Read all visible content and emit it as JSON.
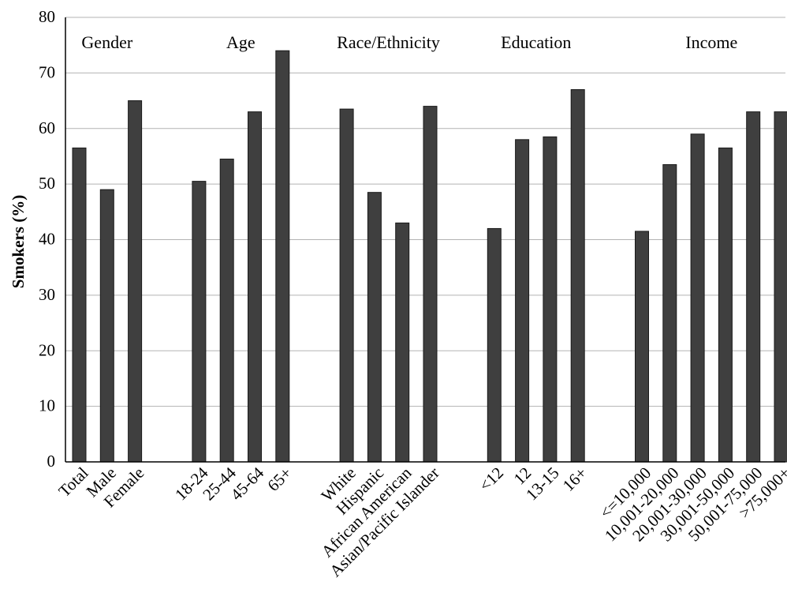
{
  "chart_data": {
    "type": "bar",
    "title": "",
    "xlabel": "",
    "ylabel": "Smokers (%)",
    "ylim": [
      0,
      80
    ],
    "yticks": [
      0,
      10,
      20,
      30,
      40,
      50,
      60,
      70,
      80
    ],
    "grid": true,
    "legend": "none",
    "bar_color": "#3f3f3f",
    "groups": [
      {
        "label": "Gender",
        "categories": [
          "Total",
          "Male",
          "Female"
        ],
        "values": [
          56.5,
          49,
          65
        ]
      },
      {
        "label": "Age",
        "categories": [
          "18-24",
          "25-44",
          "45-64",
          "65+"
        ],
        "values": [
          50.5,
          54.5,
          63,
          74
        ]
      },
      {
        "label": "Race/Ethnicity",
        "categories": [
          "White",
          "Hispanic",
          "African American",
          "Asian/Pacific Islander"
        ],
        "values": [
          63.5,
          48.5,
          43,
          64
        ]
      },
      {
        "label": "Education",
        "categories": [
          "<12",
          "12",
          "13-15",
          "16+"
        ],
        "values": [
          42,
          58,
          58.5,
          67
        ]
      },
      {
        "label": "Income",
        "categories": [
          "<=10,000",
          "10,001-20,000",
          "20,001-30,000",
          "30,001-50,000",
          "50,001-75,000",
          ">75,000+"
        ],
        "values": [
          41.5,
          53.5,
          59,
          56.5,
          63,
          63
        ]
      }
    ]
  }
}
